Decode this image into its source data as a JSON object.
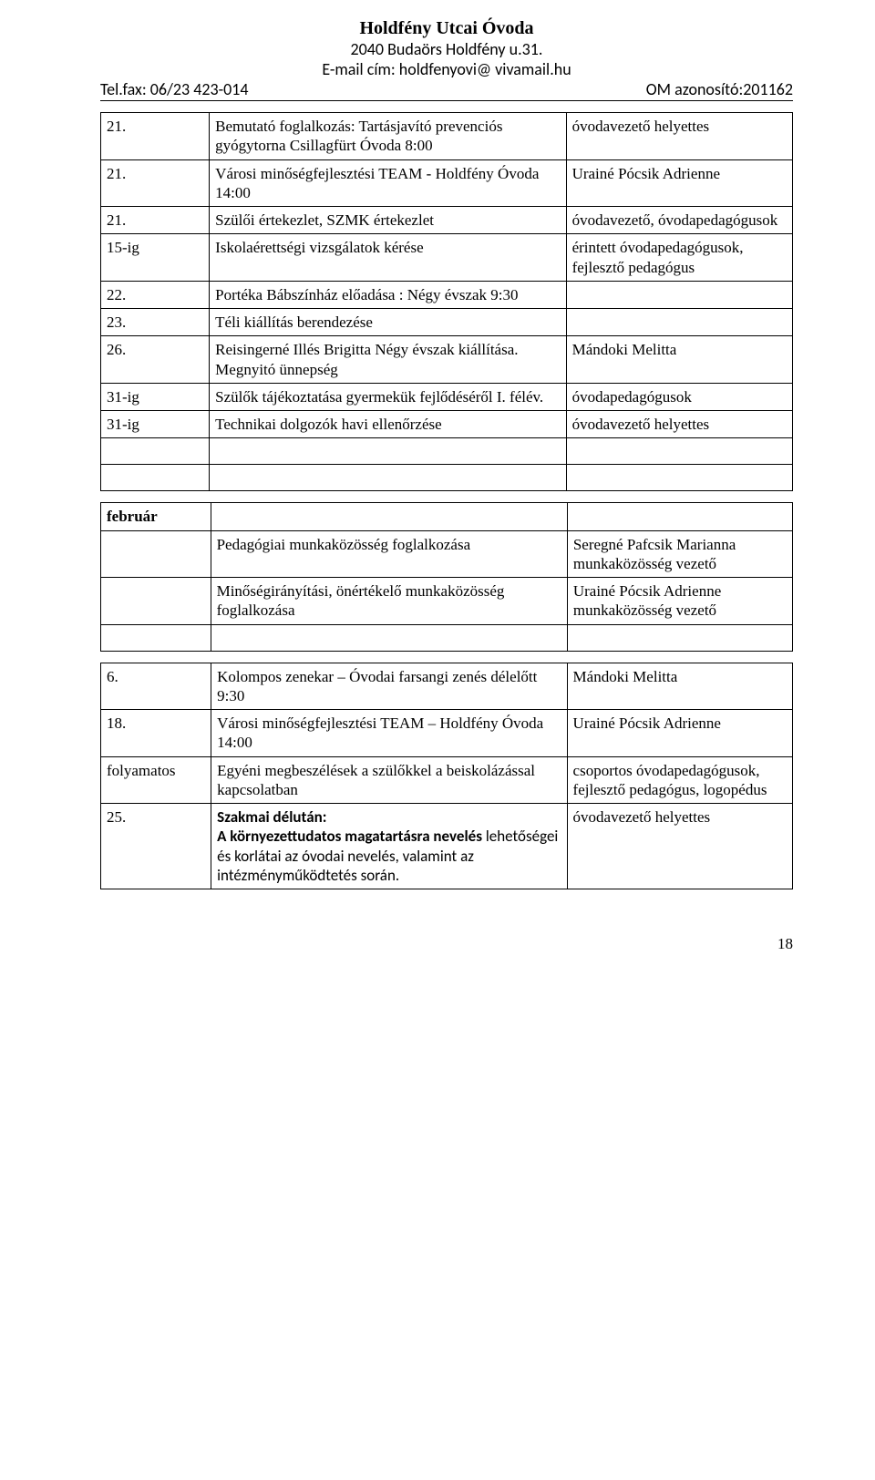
{
  "header": {
    "title": "Holdfény Utcai Óvoda",
    "address": "2040 Budaörs Holdfény u.31.",
    "email_label": "E-mail cím: holdfenyovi@ vivamail.hu",
    "telfax": "Tel.fax: 06/23 423-014",
    "om": "OM azonosító:201162"
  },
  "table1": {
    "r1": {
      "c1": "21.",
      "c2": "Bemutató foglalkozás: Tartásjavító prevenciós gyógytorna  Csillagfürt Óvoda  8:00",
      "c3": "óvodavezető helyettes"
    },
    "r2": {
      "c1": "21.",
      "c2": "Városi minőségfejlesztési TEAM  - Holdfény Óvoda 14:00",
      "c3": "Urainé Pócsik Adrienne"
    },
    "r3": {
      "c1": "21.",
      "c2": "Szülői értekezlet, SZMK értekezlet",
      "c3": "óvodavezető, óvodapedagógusok"
    },
    "r4": {
      "c1": "15-ig",
      "c2": "Iskolaérettségi vizsgálatok kérése",
      "c3": "érintett óvodapedagógusok, fejlesztő pedagógus"
    },
    "r5": {
      "c1": "22.",
      "c2": "Portéka Bábszínház előadása : Négy évszak 9:30",
      "c3": ""
    },
    "r6": {
      "c1": "23.",
      "c2": "Téli kiállítás berendezése",
      "c3": ""
    },
    "r7": {
      "c1": "26.",
      "c2": "Reisingerné Illés Brigitta Négy évszak kiállítása.\nMegnyitó ünnepség",
      "c3": "Mándoki Melitta"
    },
    "r8": {
      "c1": "31-ig",
      "c2": "Szülők tájékoztatása gyermekük fejlődéséről I. félév.",
      "c3": "óvodapedagógusok"
    },
    "r9": {
      "c1": "31-ig",
      "c2": "Technikai dolgozók havi ellenőrzése",
      "c3": "óvodavezető helyettes"
    }
  },
  "table2": {
    "r1": {
      "c1": "február",
      "c2": "",
      "c3": ""
    },
    "r2": {
      "c1": "",
      "c2": "Pedagógiai munkaközösség foglalkozása",
      "c3": "Seregné Pafcsik Marianna munkaközösség vezető"
    },
    "r3": {
      "c1": "",
      "c2": "Minőségirányítási, önértékelő munkaközösség foglalkozása",
      "c3": "Urainé Pócsik Adrienne munkaközösség vezető"
    }
  },
  "table3": {
    "r1": {
      "c1": "6.",
      "c2": "Kolompos zenekar – Óvodai farsangi zenés délelőtt 9:30",
      "c3": "Mándoki Melitta"
    },
    "r2": {
      "c1": "18.",
      "c2": "Városi minőségfejlesztési TEAM – Holdfény Óvoda 14:00",
      "c3": "Urainé Pócsik Adrienne"
    },
    "r3": {
      "c1": "folyamatos",
      "c2": "Egyéni megbeszélések a szülőkkel a beiskolázással kapcsolatban",
      "c3": "csoportos óvodapedagógusok, fejlesztő pedagógus, logopédus"
    },
    "r4": {
      "c1": "25.",
      "c2_bold": "Szakmai délután:\nA környezettudatos magatartásra nevelés",
      "c2_rest": " lehetőségei és korlátai az óvodai nevelés, valamint az intézményműködtetés során.",
      "c3": "óvodavezető helyettes"
    }
  },
  "pagenum": "18"
}
